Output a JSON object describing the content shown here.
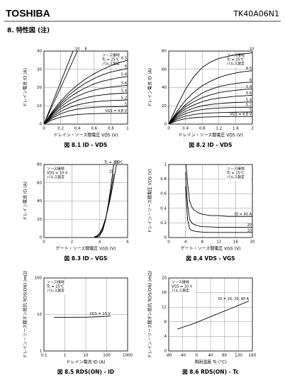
{
  "header": {
    "brand": "TOSHIBA",
    "part": "TK40A06N1",
    "section": "8. 特性図 (注)"
  },
  "chart_data": [
    {
      "type": "line",
      "caption": "図 8.1 ID - VDS",
      "xlabel": "ドレイン・ソース間電圧 VDS (V)",
      "ylabel": "ドレイン電流 ID (A)",
      "legend": [
        "ソース接地",
        "Tc = 25°C",
        "パルス測定"
      ],
      "legend_position": "upper right",
      "color": "#000000",
      "grid": true,
      "xlim": [
        0,
        1
      ],
      "xticks": [
        0,
        0.2,
        0.4,
        0.6,
        0.8,
        1
      ],
      "ylim": [
        0,
        40
      ],
      "yticks": [
        0,
        10,
        20,
        30,
        40
      ],
      "x": [
        0,
        0.1,
        0.2,
        0.3,
        0.4,
        0.5,
        0.6,
        0.7,
        0.8,
        0.9,
        1
      ],
      "series": [
        {
          "name": "10",
          "values": [
            0,
            11.5,
            23,
            34.5,
            46,
            null,
            null,
            null,
            null,
            null,
            null
          ]
        },
        {
          "name": "8",
          "values": [
            0,
            10,
            20,
            30,
            40,
            50,
            null,
            null,
            null,
            null,
            null
          ]
        },
        {
          "name": "6.5",
          "values": [
            0,
            6.9,
            12.6,
            17.4,
            21.4,
            24.8,
            27.6,
            29.9,
            32,
            33.6,
            35
          ]
        },
        {
          "name": "6",
          "values": [
            0,
            6.2,
            11.5,
            16,
            19.5,
            22.5,
            25,
            27,
            28.5,
            29.5,
            30.5
          ]
        },
        {
          "name": "5.8",
          "values": [
            0,
            5.8,
            10.5,
            14.5,
            17.5,
            20,
            22,
            23.5,
            24.5,
            25.5,
            26
          ]
        },
        {
          "name": "5.6",
          "values": [
            0,
            5.3,
            9.5,
            12.8,
            15.3,
            17.2,
            18.6,
            19.6,
            20.3,
            20.8,
            21.2
          ]
        },
        {
          "name": "5.4",
          "values": [
            0,
            4.7,
            8.3,
            11,
            13,
            14.4,
            15.4,
            16,
            16.5,
            16.8,
            17
          ]
        },
        {
          "name": "5.2",
          "values": [
            0,
            4,
            7,
            9,
            10.5,
            11.5,
            12.2,
            12.6,
            12.9,
            13.1,
            13.2
          ]
        },
        {
          "name": "5",
          "values": [
            0,
            3.3,
            5.7,
            7.2,
            8.2,
            8.8,
            9.2,
            9.4,
            9.5,
            9.6,
            9.7
          ]
        },
        {
          "name": "VGS = 4.8 V",
          "values": [
            0,
            2.3,
            3.8,
            4.7,
            5.2,
            5.5,
            5.7,
            5.8,
            5.9,
            5.9,
            6
          ]
        }
      ]
    },
    {
      "type": "line",
      "caption": "図 8.2 ID - VDS",
      "xlabel": "ドレイン・ソース間電圧 VDS (V)",
      "ylabel": "ドレイン電流 ID (A)",
      "legend": [
        "ソース接地",
        "Tc = 25°C",
        "パルス測定"
      ],
      "legend_position": "upper right",
      "color": "#000000",
      "grid": true,
      "xlim": [
        0,
        2
      ],
      "xticks": [
        0,
        0.4,
        0.8,
        1.2,
        1.6,
        2
      ],
      "ylim": [
        0,
        80
      ],
      "yticks": [
        0,
        20,
        40,
        60,
        80
      ],
      "x": [
        0,
        0.2,
        0.4,
        0.6,
        0.8,
        1,
        1.2,
        1.4,
        1.6,
        1.8,
        2
      ],
      "series": [
        {
          "name": "10",
          "values": [
            0,
            20,
            38,
            52,
            62,
            68,
            72,
            74,
            76,
            77,
            78
          ]
        },
        {
          "name": "6.5",
          "values": [
            0,
            14,
            26,
            35,
            42,
            47,
            51,
            54,
            56,
            57.5,
            58.5
          ]
        },
        {
          "name": "6",
          "values": [
            0,
            12,
            21,
            28,
            34,
            38,
            41,
            43,
            44.5,
            45.5,
            46
          ]
        },
        {
          "name": "5.8",
          "values": [
            0,
            11,
            19,
            24.5,
            29,
            32,
            34.5,
            36,
            37,
            38,
            38.5
          ]
        },
        {
          "name": "5.6",
          "values": [
            0,
            10,
            16.5,
            21,
            24.5,
            27,
            28.5,
            29.5,
            30.5,
            31,
            31.5
          ]
        },
        {
          "name": "5.4",
          "values": [
            0,
            8.5,
            14,
            17.5,
            20,
            21.5,
            22.5,
            23.2,
            23.7,
            24,
            24.2
          ]
        },
        {
          "name": "5.2",
          "values": [
            0,
            7,
            11.5,
            14.3,
            16,
            17,
            17.6,
            18,
            18.2,
            18.4,
            18.5
          ]
        },
        {
          "name": "5",
          "values": [
            0,
            5.5,
            8.7,
            10.5,
            11.6,
            12.2,
            12.6,
            12.8,
            13,
            13.1,
            13.2
          ]
        },
        {
          "name": "VGS = 4.8 V",
          "values": [
            0,
            3.8,
            5.9,
            7,
            7.6,
            7.9,
            8.1,
            8.2,
            8.3,
            8.3,
            8.4
          ]
        }
      ]
    },
    {
      "type": "line",
      "caption": "図 8.3 ID - VGS",
      "xlabel": "ゲート・ソース間電圧 VGS (V)",
      "ylabel": "ドレイン電流 ID (A)",
      "legend": [
        "ソース接地",
        "VDS = 10 V",
        "パルス測定"
      ],
      "legend_position": "upper left",
      "color": "#000000",
      "grid": true,
      "xlim": [
        0,
        6
      ],
      "xticks": [
        0,
        2,
        4,
        6
      ],
      "ylim": [
        0,
        80
      ],
      "yticks": [
        0,
        20,
        40,
        60,
        80
      ],
      "x": [
        3.6,
        3.8,
        4,
        4.2,
        4.4,
        4.6,
        4.8,
        5,
        5.2
      ],
      "series": [
        {
          "name": "100",
          "values": [
            0.5,
            2,
            5,
            11,
            20,
            32,
            46,
            62,
            80
          ]
        },
        {
          "name": "25",
          "values": [
            0.2,
            1,
            3.5,
            9,
            19,
            33,
            50,
            70,
            null
          ]
        },
        {
          "name": "Tc = -55°C",
          "values": [
            0,
            0.4,
            2,
            7,
            18,
            35,
            56,
            80,
            null
          ]
        }
      ]
    },
    {
      "type": "line",
      "caption": "図 8.4 VDS - VGS",
      "xlabel": "ゲート・ソース間電圧 VGS (V)",
      "ylabel": "ドレイン・ソース間電圧 VDS (V)",
      "legend": [
        "ソース接地",
        "Tc = 25°C",
        "パルス測定"
      ],
      "legend_position": "upper right",
      "color": "#000000",
      "grid": true,
      "xlim": [
        0,
        20
      ],
      "xticks": [
        0,
        4,
        8,
        12,
        16,
        20
      ],
      "ylim": [
        0,
        1
      ],
      "yticks": [
        0,
        0.2,
        0.4,
        0.6,
        0.8,
        1
      ],
      "x": [
        4,
        4.5,
        5,
        5.5,
        6,
        7,
        8,
        10,
        12,
        14,
        16,
        18,
        20
      ],
      "series": [
        {
          "name": "ID = 40 A",
          "values": [
            1.1,
            0.75,
            0.5,
            0.42,
            0.38,
            0.34,
            0.32,
            0.3,
            0.3,
            0.29,
            0.29,
            0.29,
            0.29
          ]
        },
        {
          "name": "20",
          "values": [
            0.9,
            0.45,
            0.25,
            0.2,
            0.18,
            0.16,
            0.15,
            0.145,
            0.14,
            0.14,
            0.14,
            0.14,
            0.14
          ]
        },
        {
          "name": "10",
          "values": [
            0.7,
            0.25,
            0.12,
            0.1,
            0.09,
            0.08,
            0.075,
            0.07,
            0.07,
            0.07,
            0.07,
            0.07,
            0.07
          ]
        }
      ]
    },
    {
      "type": "line",
      "caption": "図 8.5 RDS(ON) - ID",
      "xlabel": "ドレイン電流 ID (A)",
      "ylabel": "ドレイン・ソース間オン抵抗 RDS(ON) (mΩ)",
      "legend": [
        "ソース接地",
        "Tc = 25°C",
        "パルス測定"
      ],
      "legend_position": "upper left",
      "color": "#000000",
      "grid": true,
      "xlog": true,
      "ylog": true,
      "xlim": [
        0.1,
        1000
      ],
      "xticks": [
        0.1,
        1,
        10,
        100,
        1000
      ],
      "ylim": [
        1,
        100
      ],
      "yticks": [
        1,
        10,
        100
      ],
      "x": [
        0.3,
        1,
        3,
        10,
        30,
        100,
        150
      ],
      "series": [
        {
          "name": "VGS = 10 V",
          "values": [
            8.4,
            8.4,
            8.4,
            8.45,
            8.6,
            8.9,
            9.1
          ]
        }
      ]
    },
    {
      "type": "line",
      "caption": "図 8.6 RDS(ON) - Tc",
      "xlabel": "周囲温度 Tc (°C)",
      "ylabel": "ドレイン・ソース間オン抵抗 RDS(ON) (mΩ)",
      "legend": [
        "ソース接地",
        "VGS = 10 V",
        "パルス測定"
      ],
      "legend_position": "upper left",
      "color": "#000000",
      "grid": true,
      "xlim": [
        -80,
        160
      ],
      "xticks": [
        -80,
        -40,
        0,
        40,
        80,
        120,
        160
      ],
      "ylim": [
        0,
        20
      ],
      "yticks": [
        0,
        4,
        8,
        12,
        16,
        20
      ],
      "x": [
        -55,
        0,
        50,
        100,
        150
      ],
      "series": [
        {
          "name": "ID = 10, 20, 40 A",
          "values": [
            6,
            7.8,
            9.8,
            11.7,
            13.7
          ]
        }
      ]
    }
  ]
}
